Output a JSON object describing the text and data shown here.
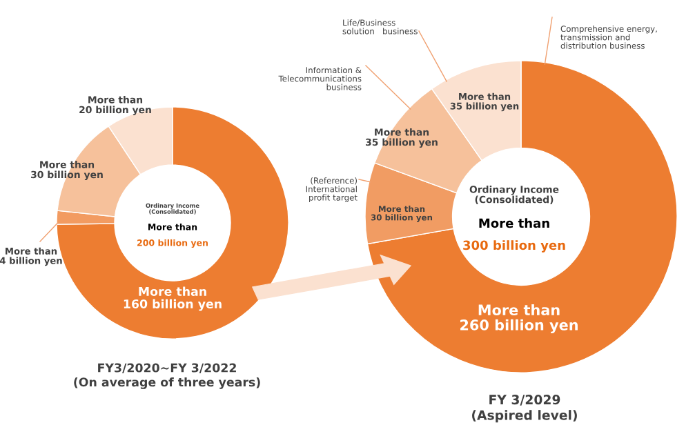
{
  "chart_data": [
    {
      "type": "donut",
      "title": "FY3/2020~FY 3/2022\n(On average of three years)",
      "categories": [
        null,
        null,
        null,
        null
      ],
      "values": [
        74.8,
        1.9,
        14.0,
        9.3
      ],
      "colors": [
        "#ed7d31",
        "#f29b61",
        "#f6c19b",
        "#fbe1d0"
      ],
      "value_labels": [
        "More than\n160 billion yen",
        "More than\n4 billion yen",
        "More than\n30 billion yen",
        "More than\n20 billion yen"
      ],
      "annotations": [
        "Ordinary Income\n(Consolidated)",
        "More than",
        "200 billion yen"
      ]
    },
    {
      "type": "donut",
      "title": "FY 3/2029\n(Aspired level)",
      "categories": [
        "Comprehensive energy,\ntransmission and\ndistribution business",
        "(Reference)\nInternational\nprofit target",
        "Information &\nTelecommunications\nbusiness",
        "Life/Business\nsolution   business"
      ],
      "values": [
        72.2,
        8.4,
        9.7,
        9.7
      ],
      "colors": [
        "#ed7d31",
        "#f19c63",
        "#f6c19b",
        "#fbe1d0"
      ],
      "value_labels": [
        "More than\n260 billion yen",
        "More than\n30 billion yen",
        "More than\n35 billion yen",
        "More than\n35 billion yen"
      ],
      "annotations": [
        "Ordinary Income\n(Consolidated)",
        "More than",
        "300 billion yen"
      ]
    }
  ]
}
